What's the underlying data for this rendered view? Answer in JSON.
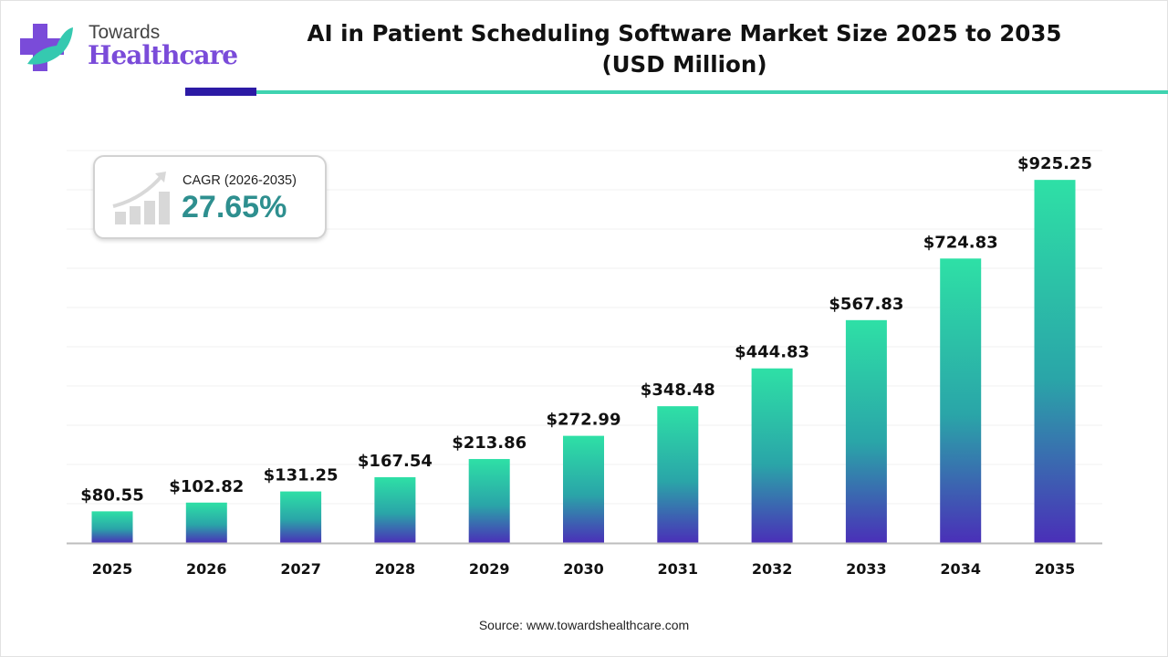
{
  "brand": {
    "line1": "Towards",
    "line2": "Healthcare"
  },
  "colors": {
    "bar_top": "#2ee0a6",
    "bar_bottom": "#4a2fb8",
    "accent_dark": "#2c1aa5",
    "accent_teal": "#3fd3b0",
    "cagr": "#2e8f8f",
    "logo": "#7a4bd9"
  },
  "cagr": {
    "label": "CAGR (2026-2035)",
    "value": "27.65%",
    "icon": "growth-chart-icon"
  },
  "source": "Source: www.towardshealthcare.com",
  "chart_data": {
    "type": "bar",
    "title": "AI in Patient Scheduling Software Market Size 2025 to 2035",
    "subtitle": "(USD Million)",
    "categories": [
      "2025",
      "2026",
      "2027",
      "2028",
      "2029",
      "2030",
      "2031",
      "2032",
      "2033",
      "2034",
      "2035"
    ],
    "values": [
      80.55,
      102.82,
      131.25,
      167.54,
      213.86,
      272.99,
      348.48,
      444.83,
      567.83,
      724.83,
      925.25
    ],
    "labels": [
      "$80.55",
      "$102.82",
      "$131.25",
      "$167.54",
      "$213.86",
      "$272.99",
      "$348.48",
      "$444.83",
      "$567.83",
      "$724.83",
      "$925.25"
    ],
    "xlabel": "",
    "ylabel": "",
    "ylim": [
      0,
      1000
    ],
    "grid": true
  }
}
